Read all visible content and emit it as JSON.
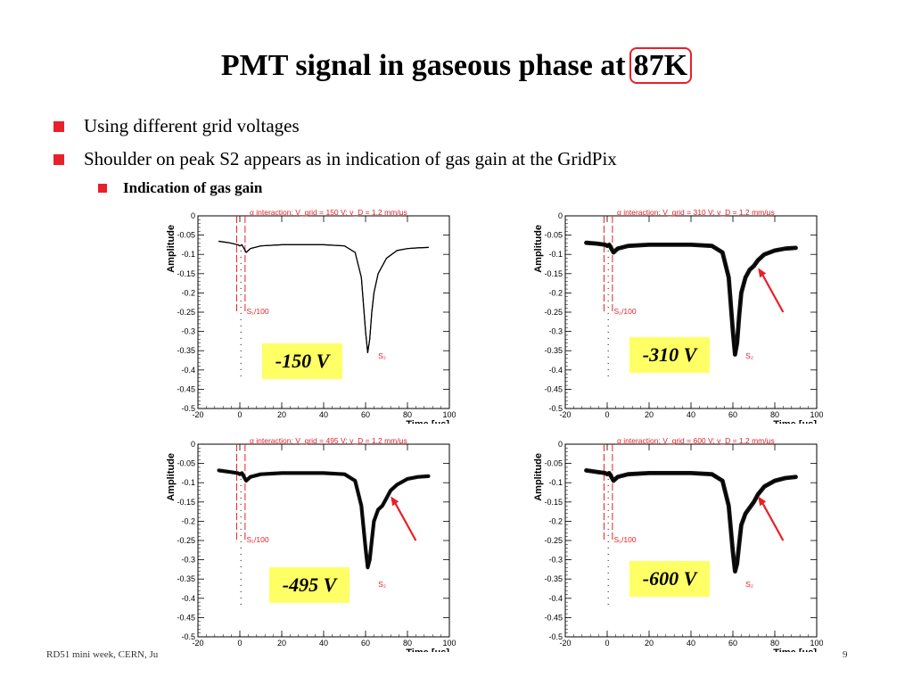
{
  "slide": {
    "title_main": "PMT signal in gaseous phase at",
    "title_highlight": "87K",
    "bullets": [
      "Using different grid voltages",
      "Shoulder on peak S2 appears as in indication of gas gain at the GridPix"
    ],
    "sub_bullet": "Indication of gas gain",
    "footer_left": "RD51 mini week, CERN, Ju",
    "page_number": "9"
  },
  "colors": {
    "accent": "#e8202a",
    "label_box": "#ffff66",
    "annotation": "#e8202a"
  },
  "chart_data": [
    {
      "type": "line",
      "annotation": "α interaction; V_grid = 150 V; v_D = 1.2 mm/μs",
      "ylabel": "Amplitude",
      "xlabel": "Time [μs]",
      "xlim": [
        -20,
        100
      ],
      "ylim": [
        -0.5,
        0
      ],
      "xticks": [
        -20,
        0,
        20,
        40,
        60,
        80,
        100
      ],
      "yticks": [
        0,
        -0.05,
        -0.1,
        -0.15,
        -0.2,
        -0.25,
        -0.3,
        -0.35,
        -0.4,
        -0.45,
        -0.5
      ],
      "s1_label": "S₁/100",
      "s2_label": "S₂",
      "voltage_label": "-150 V",
      "shoulder_arrow": false,
      "noise": 0.002,
      "series": [
        {
          "x": [
            -10,
            -5,
            -1,
            0,
            1,
            2,
            3,
            5,
            10,
            20,
            30,
            40,
            50,
            55,
            58,
            60,
            61,
            62,
            63,
            64,
            66,
            70,
            75,
            80,
            85,
            90
          ],
          "y": [
            -0.066,
            -0.07,
            -0.075,
            -0.078,
            -0.075,
            -0.085,
            -0.095,
            -0.085,
            -0.078,
            -0.075,
            -0.075,
            -0.075,
            -0.078,
            -0.095,
            -0.16,
            -0.3,
            -0.355,
            -0.32,
            -0.25,
            -0.2,
            -0.15,
            -0.11,
            -0.09,
            -0.085,
            -0.083,
            -0.082
          ]
        }
      ]
    },
    {
      "type": "line",
      "annotation": "α interaction; V_grid = 310 V; v_D = 1.2 mm/μs",
      "ylabel": "Amplitude",
      "xlabel": "Time [μs]",
      "xlim": [
        -20,
        100
      ],
      "ylim": [
        -0.5,
        0
      ],
      "xticks": [
        -20,
        0,
        20,
        40,
        60,
        80,
        100
      ],
      "yticks": [
        0,
        -0.05,
        -0.1,
        -0.15,
        -0.2,
        -0.25,
        -0.3,
        -0.35,
        -0.4,
        -0.45,
        -0.5
      ],
      "s1_label": "S₁/100",
      "s2_label": "S₂",
      "voltage_label": "-310 V",
      "shoulder_arrow": true,
      "noise": 0.008,
      "series": [
        {
          "x": [
            -10,
            -5,
            -1,
            0,
            1,
            2,
            3,
            5,
            10,
            20,
            30,
            40,
            50,
            55,
            58,
            60,
            61,
            62,
            63,
            64,
            66,
            68,
            70,
            72,
            75,
            80,
            85,
            90
          ],
          "y": [
            -0.07,
            -0.072,
            -0.075,
            -0.078,
            -0.075,
            -0.085,
            -0.095,
            -0.085,
            -0.078,
            -0.075,
            -0.075,
            -0.075,
            -0.078,
            -0.095,
            -0.16,
            -0.3,
            -0.36,
            -0.33,
            -0.26,
            -0.2,
            -0.16,
            -0.14,
            -0.13,
            -0.115,
            -0.1,
            -0.09,
            -0.085,
            -0.083
          ]
        }
      ]
    },
    {
      "type": "line",
      "annotation": "α interaction; V_grid = 495 V; v_D = 1.2 mm/μs",
      "ylabel": "Amplitude",
      "xlabel": "Time [μs]",
      "xlim": [
        -20,
        100
      ],
      "ylim": [
        -0.5,
        0
      ],
      "xticks": [
        -20,
        0,
        20,
        40,
        60,
        80,
        100
      ],
      "yticks": [
        0,
        -0.05,
        -0.1,
        -0.15,
        -0.2,
        -0.25,
        -0.3,
        -0.35,
        -0.4,
        -0.45,
        -0.5
      ],
      "s1_label": "S₁/100",
      "s2_label": "S₂",
      "voltage_label": "-495 V",
      "shoulder_arrow": true,
      "noise": 0.007,
      "series": [
        {
          "x": [
            -10,
            -5,
            -1,
            0,
            1,
            2,
            3,
            5,
            10,
            20,
            30,
            40,
            50,
            55,
            58,
            60,
            61,
            62,
            63,
            64,
            66,
            68,
            70,
            72,
            75,
            80,
            85,
            90
          ],
          "y": [
            -0.068,
            -0.072,
            -0.075,
            -0.078,
            -0.075,
            -0.085,
            -0.095,
            -0.085,
            -0.078,
            -0.075,
            -0.075,
            -0.075,
            -0.078,
            -0.095,
            -0.16,
            -0.27,
            -0.32,
            -0.3,
            -0.25,
            -0.2,
            -0.17,
            -0.16,
            -0.14,
            -0.12,
            -0.105,
            -0.09,
            -0.085,
            -0.083
          ]
        }
      ]
    },
    {
      "type": "line",
      "annotation": "α interaction; V_grid = 600 V; v_D = 1.2 mm/μs",
      "ylabel": "Amplitude",
      "xlabel": "Time [μs]",
      "xlim": [
        -20,
        100
      ],
      "ylim": [
        -0.5,
        0
      ],
      "xticks": [
        -20,
        0,
        20,
        40,
        60,
        80,
        100
      ],
      "yticks": [
        0,
        -0.05,
        -0.1,
        -0.15,
        -0.2,
        -0.25,
        -0.3,
        -0.35,
        -0.4,
        -0.45,
        -0.5
      ],
      "s1_label": "S₁/100",
      "s2_label": "S₂",
      "voltage_label": "-600 V",
      "shoulder_arrow": true,
      "noise": 0.008,
      "series": [
        {
          "x": [
            -10,
            -5,
            -1,
            0,
            1,
            2,
            3,
            5,
            10,
            20,
            30,
            40,
            50,
            55,
            58,
            60,
            61,
            62,
            63,
            64,
            66,
            68,
            70,
            72,
            75,
            80,
            85,
            90
          ],
          "y": [
            -0.068,
            -0.072,
            -0.075,
            -0.078,
            -0.075,
            -0.085,
            -0.095,
            -0.085,
            -0.078,
            -0.075,
            -0.075,
            -0.075,
            -0.078,
            -0.095,
            -0.16,
            -0.28,
            -0.33,
            -0.31,
            -0.26,
            -0.21,
            -0.18,
            -0.165,
            -0.15,
            -0.13,
            -0.11,
            -0.095,
            -0.088,
            -0.085
          ]
        }
      ]
    }
  ]
}
